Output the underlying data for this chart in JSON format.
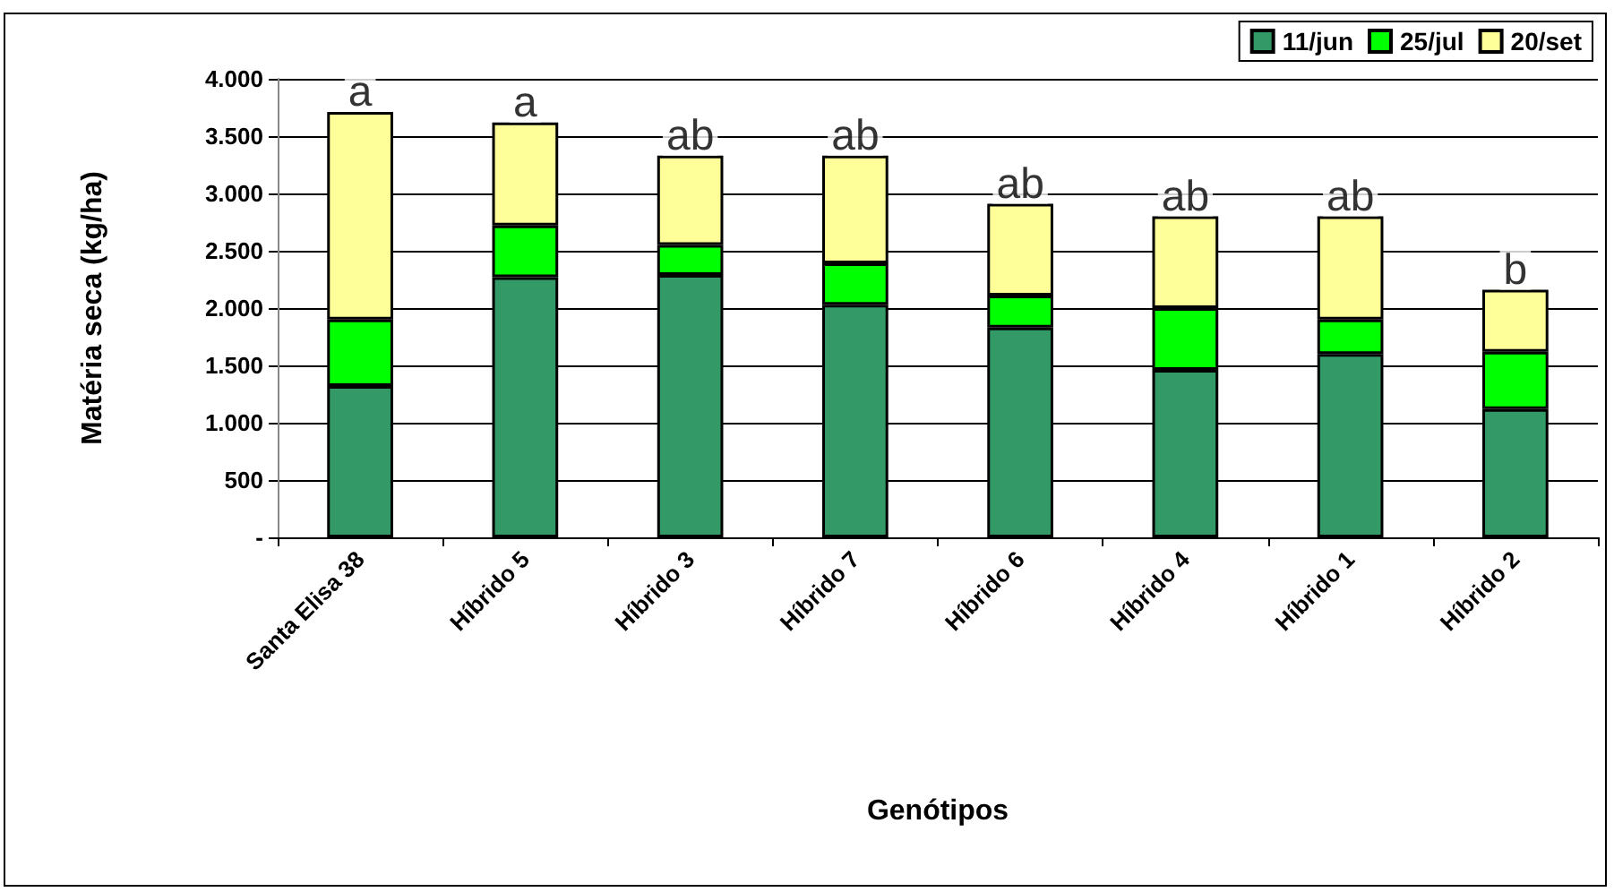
{
  "chart_data": {
    "type": "bar",
    "stacked": true,
    "xlabel": "Genótipos",
    "ylabel": "Matéria seca (kg/ha)",
    "categories": [
      "Santa Elisa 38",
      "Híbrido 5",
      "Híbrido 3",
      "Híbrido 7",
      "Híbrido 6",
      "Híbrido 4",
      "Híbrido 1",
      "Híbrido 2"
    ],
    "series": [
      {
        "name": "11/jun",
        "color": "#339966",
        "values": [
          1320,
          2270,
          2290,
          2030,
          1830,
          1460,
          1600,
          1120
        ]
      },
      {
        "name": "25/jul",
        "color": "#00ff00",
        "values": [
          580,
          450,
          260,
          360,
          280,
          540,
          300,
          500
        ]
      },
      {
        "name": "20/set",
        "color": "#ffff99",
        "values": [
          1810,
          900,
          780,
          940,
          800,
          800,
          900,
          540
        ]
      }
    ],
    "ylim": [
      0,
      4000
    ],
    "yticks": [
      {
        "value": 0,
        "label": "-"
      },
      {
        "value": 500,
        "label": "500"
      },
      {
        "value": 1000,
        "label": "1.000"
      },
      {
        "value": 1500,
        "label": "1.500"
      },
      {
        "value": 2000,
        "label": "2.000"
      },
      {
        "value": 2500,
        "label": "2.500"
      },
      {
        "value": 3000,
        "label": "3.000"
      },
      {
        "value": 3500,
        "label": "3.500"
      },
      {
        "value": 4000,
        "label": "4.000"
      }
    ],
    "annotations": [
      {
        "text": "a",
        "x": "Santa Elisa 38",
        "y": 3710
      },
      {
        "text": "a",
        "x": "Híbrido 5",
        "y": 3620
      },
      {
        "text": "ab",
        "x": "Híbrido 3",
        "y": 3330
      },
      {
        "text": "ab",
        "x": "Híbrido 7",
        "y": 3330
      },
      {
        "text": "ab",
        "x": "Híbrido 6",
        "y": 2910
      },
      {
        "text": "ab",
        "x": "Híbrido 4",
        "y": 2800
      },
      {
        "text": "ab",
        "x": "Híbrido 1",
        "y": 2800
      },
      {
        "text": "b",
        "x": "Híbrido 2",
        "y": 2160
      }
    ],
    "grid": "y",
    "legend": "top right"
  }
}
